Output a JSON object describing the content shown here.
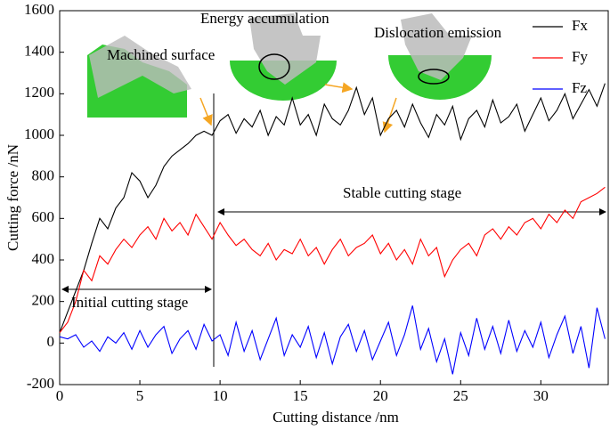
{
  "chart_data": {
    "type": "line",
    "x_label": "Cutting distance /nm",
    "y_label": "Cutting force /nN",
    "annotations": [
      "Energy accumulation",
      "Dislocation emission",
      "Machined surface",
      "Stable cutting stage",
      "Initial cutting stage"
    ],
    "xlim": [
      0,
      34.2
    ],
    "ylim": [
      -200,
      1600
    ],
    "xticks": [
      0,
      5,
      10,
      15,
      20,
      25,
      30
    ],
    "yticks": [
      -200,
      0,
      200,
      400,
      600,
      800,
      1000,
      1200,
      1400,
      1600
    ],
    "legend": "top-right",
    "x": [
      0,
      0.5,
      1,
      1.5,
      2,
      2.5,
      3,
      3.5,
      4,
      4.5,
      5,
      5.5,
      6,
      6.5,
      7,
      7.5,
      8,
      8.5,
      9,
      9.5,
      10,
      10.5,
      11,
      11.5,
      12,
      12.5,
      13,
      13.5,
      14,
      14.5,
      15,
      15.5,
      16,
      16.5,
      17,
      17.5,
      18,
      18.5,
      19,
      19.5,
      20,
      20.5,
      21,
      21.5,
      22,
      22.5,
      23,
      23.5,
      24,
      24.5,
      25,
      25.5,
      26,
      26.5,
      27,
      27.5,
      28,
      28.5,
      29,
      29.5,
      30,
      30.5,
      31,
      31.5,
      32,
      32.5,
      33,
      33.5,
      34
    ],
    "series": [
      {
        "name": "Fx",
        "color": "#000000",
        "values": [
          50,
          150,
          250,
          350,
          480,
          600,
          550,
          650,
          700,
          820,
          780,
          700,
          760,
          850,
          900,
          930,
          960,
          1000,
          1020,
          1000,
          1070,
          1100,
          1010,
          1080,
          1040,
          1120,
          1000,
          1090,
          1050,
          1180,
          1050,
          1100,
          1000,
          1150,
          1080,
          1050,
          1120,
          1230,
          1100,
          1180,
          1000,
          1080,
          1120,
          1040,
          1150,
          1060,
          990,
          1100,
          1050,
          1140,
          980,
          1080,
          1120,
          1040,
          1170,
          1060,
          1090,
          1150,
          1020,
          1100,
          1180,
          1070,
          1120,
          1200,
          1080,
          1150,
          1220,
          1140,
          1250
        ]
      },
      {
        "name": "Fy",
        "color": "#ff0000",
        "values": [
          50,
          100,
          200,
          350,
          300,
          420,
          380,
          450,
          500,
          460,
          520,
          560,
          500,
          600,
          540,
          580,
          520,
          620,
          560,
          500,
          580,
          520,
          470,
          500,
          450,
          420,
          480,
          400,
          450,
          430,
          500,
          420,
          460,
          380,
          450,
          500,
          420,
          460,
          480,
          520,
          430,
          480,
          400,
          450,
          380,
          500,
          420,
          460,
          320,
          400,
          450,
          480,
          420,
          520,
          550,
          500,
          560,
          520,
          580,
          600,
          550,
          620,
          580,
          640,
          600,
          680,
          700,
          720,
          750
        ]
      },
      {
        "name": "Fz",
        "color": "#0000ff",
        "values": [
          30,
          20,
          40,
          -20,
          10,
          -40,
          30,
          0,
          50,
          -30,
          60,
          -20,
          40,
          80,
          -50,
          20,
          60,
          -30,
          90,
          10,
          40,
          -60,
          100,
          -40,
          60,
          -80,
          20,
          120,
          -60,
          40,
          -20,
          80,
          -70,
          50,
          -100,
          30,
          90,
          -40,
          60,
          -80,
          10,
          100,
          -60,
          40,
          180,
          -30,
          70,
          -90,
          20,
          -150,
          50,
          -60,
          120,
          -30,
          80,
          -50,
          110,
          -40,
          60,
          -20,
          100,
          -70,
          40,
          130,
          -50,
          80,
          -120,
          170,
          20
        ]
      }
    ]
  }
}
